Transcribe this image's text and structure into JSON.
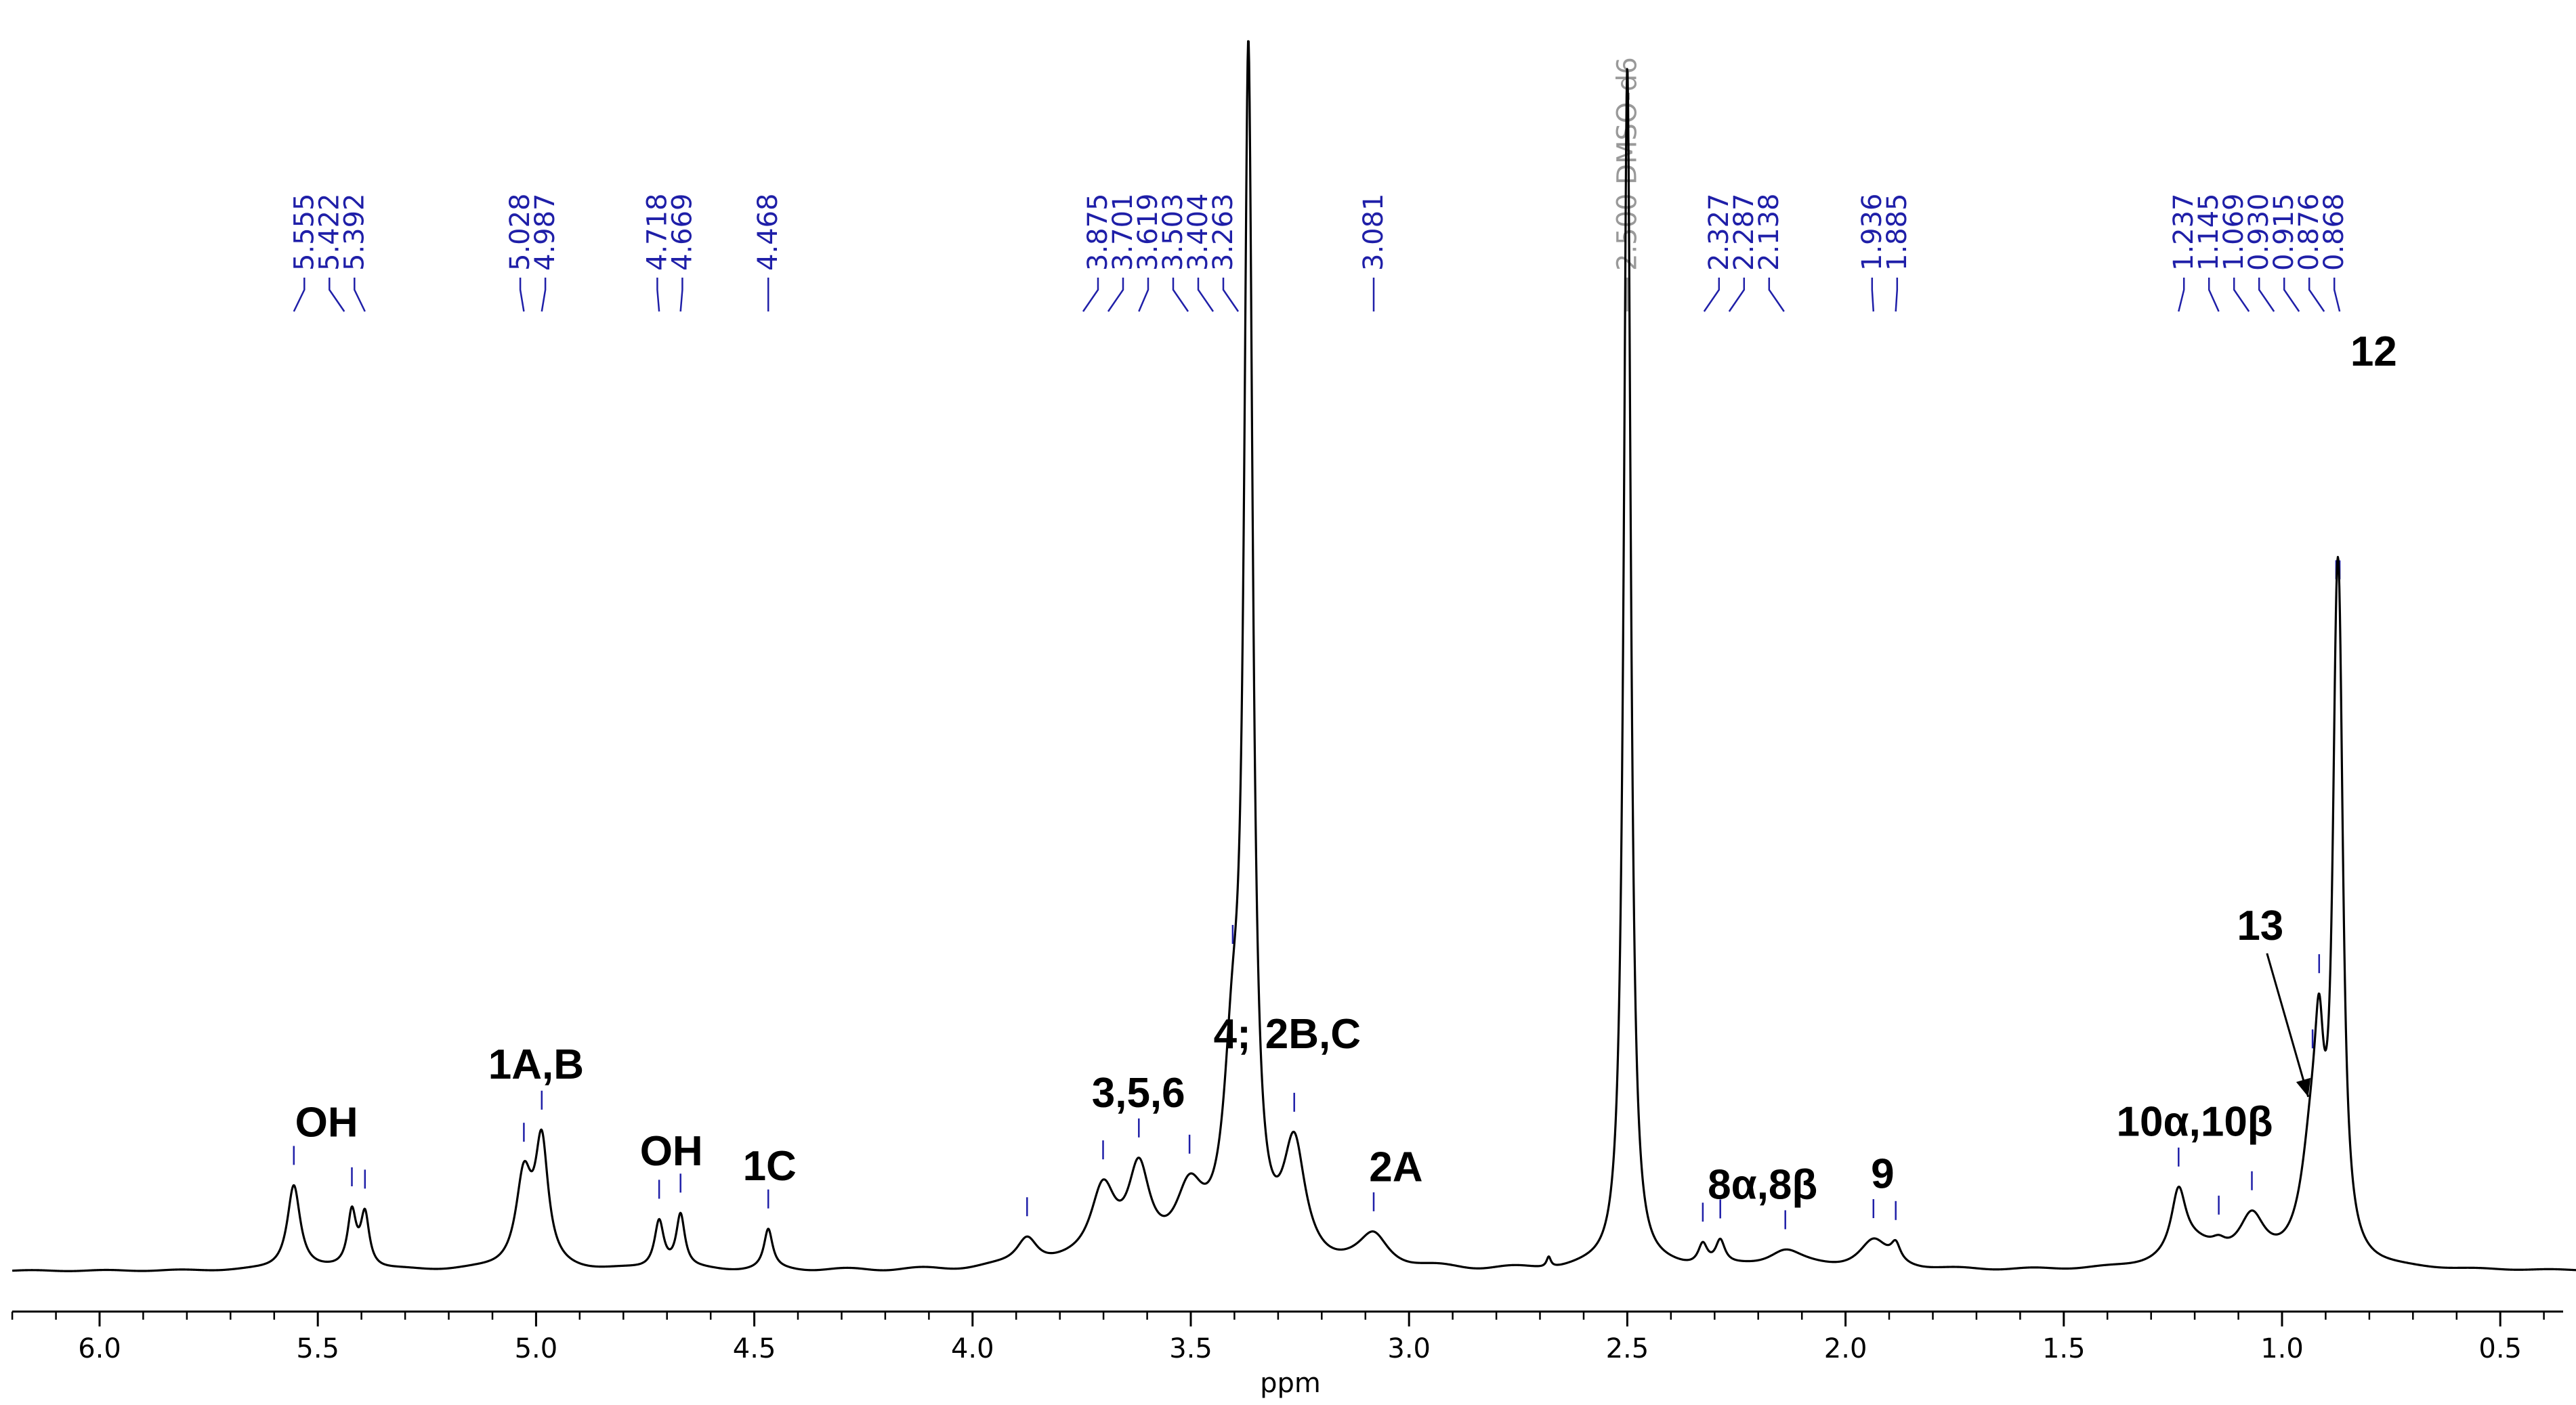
{
  "chart_data": {
    "type": "line",
    "title": "",
    "xlabel": "ppm",
    "ylabel": "",
    "xlim": [
      6.2,
      0.22
    ],
    "x_reversed": true,
    "x_ticks": [
      "6.0",
      "5.5",
      "5.0",
      "4.5",
      "4.0",
      "3.5",
      "3.0",
      "2.5",
      "2.0",
      "1.5",
      "1.0",
      "0.5"
    ],
    "x_tick_values": [
      6.0,
      5.5,
      5.0,
      4.5,
      4.0,
      3.5,
      3.0,
      2.5,
      2.0,
      1.5,
      1.0,
      0.5
    ],
    "grid": false,
    "series": [
      {
        "peaks": [
          {
            "x": 5.555,
            "h": 0.099,
            "w": 0.018
          },
          {
            "x": 5.422,
            "h": 0.064,
            "w": 0.012
          },
          {
            "x": 5.392,
            "h": 0.062,
            "w": 0.012
          },
          {
            "x": 5.028,
            "h": 0.104,
            "w": 0.022
          },
          {
            "x": 4.987,
            "h": 0.139,
            "w": 0.018
          },
          {
            "x": 4.718,
            "h": 0.056,
            "w": 0.013
          },
          {
            "x": 4.669,
            "h": 0.062,
            "w": 0.012
          },
          {
            "x": 4.468,
            "h": 0.046,
            "w": 0.012
          },
          {
            "x": 3.875,
            "h": 0.034,
            "w": 0.03
          },
          {
            "x": 3.701,
            "h": 0.088,
            "w": 0.035
          },
          {
            "x": 3.619,
            "h": 0.1,
            "w": 0.03
          },
          {
            "x": 3.503,
            "h": 0.08,
            "w": 0.04
          },
          {
            "x": 3.404,
            "h": 0.2,
            "w": 0.025
          },
          {
            "x": 3.368,
            "h": 1.35,
            "w": 0.012
          },
          {
            "x": 3.263,
            "h": 0.13,
            "w": 0.03
          },
          {
            "x": 3.081,
            "h": 0.035,
            "w": 0.04
          },
          {
            "x": 2.5,
            "h": 1.4,
            "w": 0.01
          },
          {
            "x": 2.68,
            "h": 0.012,
            "w": 0.006
          },
          {
            "x": 2.327,
            "h": 0.025,
            "w": 0.013
          },
          {
            "x": 2.287,
            "h": 0.028,
            "w": 0.013
          },
          {
            "x": 2.138,
            "h": 0.022,
            "w": 0.05
          },
          {
            "x": 1.936,
            "h": 0.033,
            "w": 0.04
          },
          {
            "x": 1.885,
            "h": 0.02,
            "w": 0.013
          },
          {
            "x": 1.237,
            "h": 0.072,
            "w": 0.02
          },
          {
            "x": 1.2,
            "h": 0.025,
            "w": 0.07
          },
          {
            "x": 1.145,
            "h": 0.01,
            "w": 0.02
          },
          {
            "x": 1.069,
            "h": 0.052,
            "w": 0.035
          },
          {
            "x": 0.93,
            "h": 0.14,
            "w": 0.03
          },
          {
            "x": 0.915,
            "h": 0.15,
            "w": 0.012
          },
          {
            "x": 0.876,
            "h": 0.43,
            "w": 0.011
          },
          {
            "x": 0.868,
            "h": 0.46,
            "w": 0.011
          }
        ]
      }
    ],
    "peak_labels": [
      {
        "value": "5.555",
        "x": 5.555,
        "group": 1
      },
      {
        "value": "5.422",
        "x": 5.422,
        "group": 1
      },
      {
        "value": "5.392",
        "x": 5.392,
        "group": 1
      },
      {
        "value": "5.028",
        "x": 5.028,
        "group": 2
      },
      {
        "value": "4.987",
        "x": 4.987,
        "group": 2
      },
      {
        "value": "4.718",
        "x": 4.718,
        "group": 3
      },
      {
        "value": "4.669",
        "x": 4.669,
        "group": 3
      },
      {
        "value": "4.468",
        "x": 4.468,
        "group": 4
      },
      {
        "value": "3.875",
        "x": 3.875,
        "group": 5
      },
      {
        "value": "3.701",
        "x": 3.701,
        "group": 5
      },
      {
        "value": "3.619",
        "x": 3.619,
        "group": 5
      },
      {
        "value": "3.503",
        "x": 3.503,
        "group": 5
      },
      {
        "value": "3.404",
        "x": 3.404,
        "group": 5
      },
      {
        "value": "3.263",
        "x": 3.263,
        "group": 5
      },
      {
        "value": "3.081",
        "x": 3.081,
        "group": 6
      },
      {
        "value": "2.500 DMSO-d6",
        "x": 2.5,
        "group": 7,
        "solvent": true
      },
      {
        "value": "2.327",
        "x": 2.327,
        "group": 8
      },
      {
        "value": "2.287",
        "x": 2.287,
        "group": 8
      },
      {
        "value": "2.138",
        "x": 2.138,
        "group": 8
      },
      {
        "value": "1.936",
        "x": 1.936,
        "group": 9
      },
      {
        "value": "1.885",
        "x": 1.885,
        "group": 9
      },
      {
        "value": "1.237",
        "x": 1.237,
        "group": 10
      },
      {
        "value": "1.145",
        "x": 1.145,
        "group": 10
      },
      {
        "value": "1.069",
        "x": 1.069,
        "group": 10
      },
      {
        "value": "0.930",
        "x": 0.93,
        "group": 10
      },
      {
        "value": "0.915",
        "x": 0.915,
        "group": 10
      },
      {
        "value": "0.876",
        "x": 0.876,
        "group": 10
      },
      {
        "value": "0.868",
        "x": 0.868,
        "group": 10
      }
    ],
    "annotations": [
      {
        "text": "OH",
        "x": 5.48
      },
      {
        "text": "1A,B",
        "x": 5.0
      },
      {
        "text": "OH",
        "x": 4.69
      },
      {
        "text": "1C",
        "x": 4.465
      },
      {
        "text": "3,5,6",
        "x": 3.62
      },
      {
        "text": "4;",
        "x": 3.405
      },
      {
        "text": "2B,C",
        "x": 3.22
      },
      {
        "text": "2A",
        "x": 3.03
      },
      {
        "text": "8α,8β",
        "x": 2.19
      },
      {
        "text": "9",
        "x": 1.915
      },
      {
        "text": "10α,10β",
        "x": 1.2
      },
      {
        "text": "13",
        "x": 1.05
      },
      {
        "text": "12",
        "x": 0.79
      }
    ],
    "colors": {
      "spectrum": "#000000",
      "peak_label": "#1f1fa8",
      "solvent_label": "#999999",
      "axis": "#000000"
    }
  }
}
